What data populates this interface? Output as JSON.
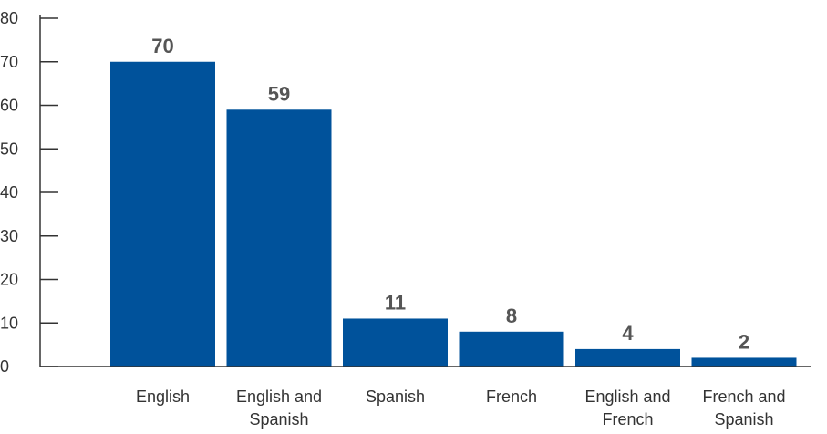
{
  "chart_data": {
    "type": "bar",
    "categories": [
      [
        "English"
      ],
      [
        "English and",
        "Spanish"
      ],
      [
        "Spanish"
      ],
      [
        "French"
      ],
      [
        "English and",
        "French"
      ],
      [
        "French and",
        "Spanish"
      ]
    ],
    "values": [
      70,
      59,
      11,
      8,
      4,
      2
    ],
    "data_labels": [
      "70",
      "59",
      "11",
      "8",
      "4",
      "2"
    ],
    "ylim": [
      0,
      80
    ],
    "yticks": [
      0,
      10,
      20,
      30,
      40,
      50,
      60,
      70,
      80
    ],
    "title": "",
    "xlabel": "",
    "ylabel": "",
    "grid": false,
    "bar_color": "#00529B",
    "axis_color": "#333333",
    "label_color": "#555555"
  }
}
